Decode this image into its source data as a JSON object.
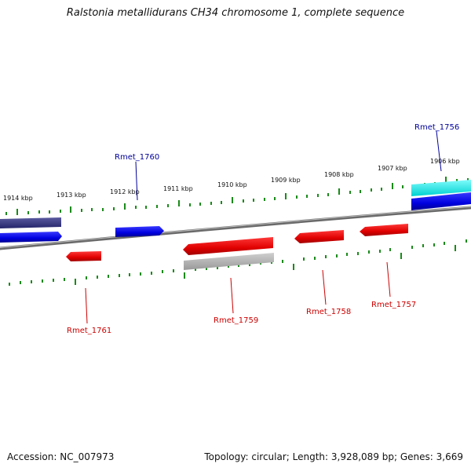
{
  "title": "Ralstonia metallidurans CH34 chromosome 1, complete sequence",
  "footer": {
    "accession": "Accession: NC_007973",
    "summary": "Topology: circular; Length: 3,928,089 bp; Genes: 3,669"
  },
  "kbp_labels": [
    "1914 kbp",
    "1913 kbp",
    "1912 kbp",
    "1911 kbp",
    "1910 kbp",
    "1909 kbp",
    "1908 kbp",
    "1907 kbp",
    "1906 kbp"
  ],
  "genes": {
    "rmet_1756": "Rmet_1756",
    "rmet_1757": "Rmet_1757",
    "rmet_1758": "Rmet_1758",
    "rmet_1759": "Rmet_1759",
    "rmet_1760": "Rmet_1760",
    "rmet_1761": "Rmet_1761"
  },
  "colors": {
    "forward_gene": "#1010e0",
    "reverse_gene": "#e81010",
    "label_forward": "#000099",
    "label_reverse": "#cc0000",
    "tick": "#1a8a1a",
    "backbone": "#777777",
    "cyan_feature": "#00e5e5",
    "dark_feature": "#3a3a8a",
    "gray_feature": "#aaaaaa"
  }
}
